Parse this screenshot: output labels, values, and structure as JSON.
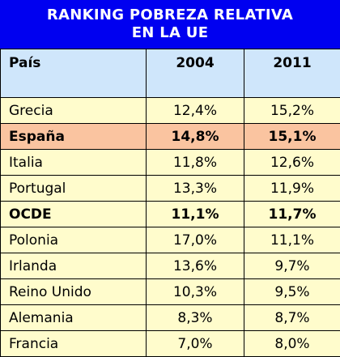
{
  "title": {
    "line1": "RANKING POBREZA RELATIVA",
    "line2": "EN LA UE"
  },
  "columns": [
    "País",
    "2004",
    "2011"
  ],
  "colors": {
    "title_bg": "#0000f0",
    "header_bg": "#cfe6fb",
    "row_bg": "#fffccc",
    "highlight_bg": "#fac4a0"
  },
  "rows": [
    {
      "country": "Grecia",
      "v2004": "12,4%",
      "v2011": "15,2%",
      "style": "normal"
    },
    {
      "country": "España",
      "v2004": "14,8%",
      "v2011": "15,1%",
      "style": "highlight"
    },
    {
      "country": "Italia",
      "v2004": "11,8%",
      "v2011": "12,6%",
      "style": "normal"
    },
    {
      "country": "Portugal",
      "v2004": "13,3%",
      "v2011": "11,9%",
      "style": "normal"
    },
    {
      "country": "OCDE",
      "v2004": "11,1%",
      "v2011": "11,7%",
      "style": "bold"
    },
    {
      "country": "Polonia",
      "v2004": "17,0%",
      "v2011": "11,1%",
      "style": "normal"
    },
    {
      "country": "Irlanda",
      "v2004": "13,6%",
      "v2011": "9,7%",
      "style": "normal"
    },
    {
      "country": "Reino Unido",
      "v2004": "10,3%",
      "v2011": "9,5%",
      "style": "normal"
    },
    {
      "country": "Alemania",
      "v2004": "8,3%",
      "v2011": "8,7%",
      "style": "normal"
    },
    {
      "country": "Francia",
      "v2004": "7,0%",
      "v2011": "8,0%",
      "style": "normal"
    }
  ]
}
